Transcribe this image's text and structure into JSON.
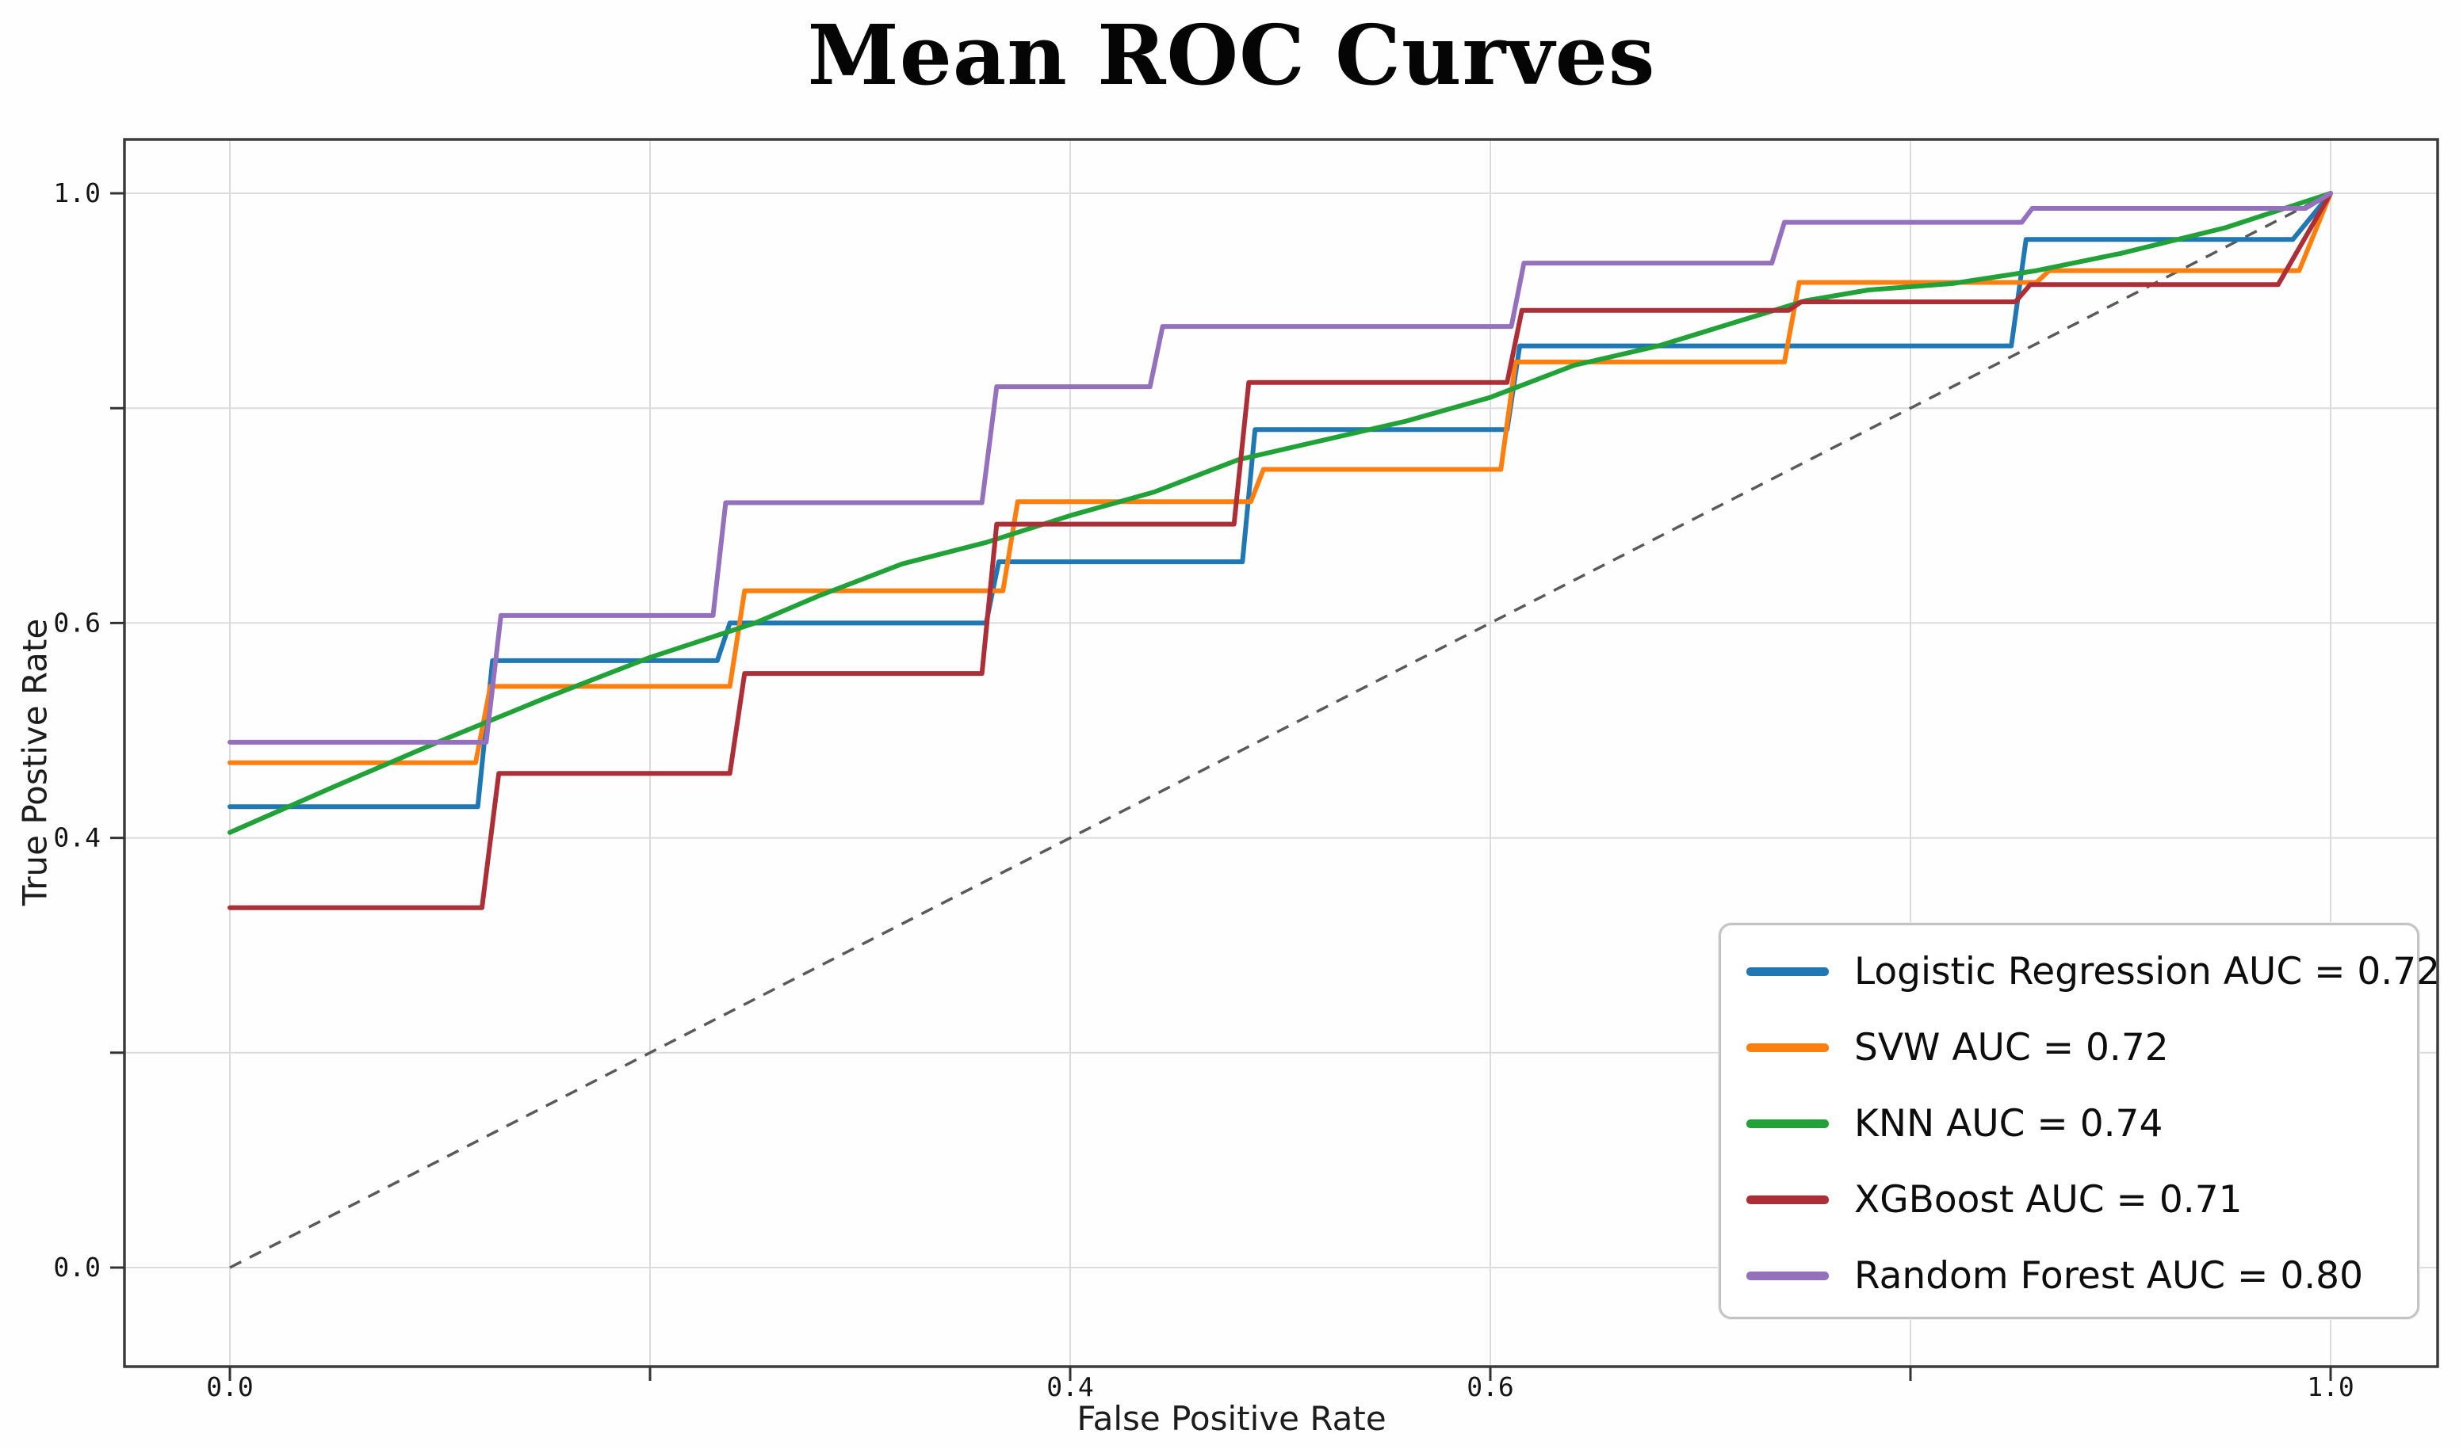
{
  "chart_data": {
    "type": "line",
    "title": "Mean ROC Curves",
    "xlabel": "False Positive Rate",
    "ylabel": "True Postive Rate",
    "xlim": [
      0.0,
      1.0
    ],
    "ylim": [
      0.0,
      1.0
    ],
    "grid": true,
    "legend_position": "lower right",
    "x_ticks": [
      {
        "value": 0.0,
        "label": "0.0"
      },
      {
        "value": 0.2,
        "label": ""
      },
      {
        "value": 0.4,
        "label": "0.4"
      },
      {
        "value": 0.6,
        "label": "0.6"
      },
      {
        "value": 0.8,
        "label": ""
      },
      {
        "value": 1.0,
        "label": "1.0"
      }
    ],
    "y_ticks": [
      {
        "value": 0.0,
        "label": "0.0"
      },
      {
        "value": 0.2,
        "label": ""
      },
      {
        "value": 0.4,
        "label": "0.4"
      },
      {
        "value": 0.6,
        "label": "0.6"
      },
      {
        "value": 0.8,
        "label": ""
      },
      {
        "value": 1.0,
        "label": "1.0"
      }
    ],
    "reference_line": {
      "name": "chance-diagonal",
      "color": "#5a5a5a",
      "style": "dashed",
      "width": 3.5,
      "points": [
        [
          0.0,
          0.0
        ],
        [
          1.0,
          1.0
        ]
      ]
    },
    "series": [
      {
        "name": "Logistic Regression",
        "auc": "0.72",
        "legend_label": "Logistic Regression AUC = 0.72",
        "color": "#1f77b4",
        "style": "solid",
        "points": [
          [
            0,
            0.429
          ],
          [
            0.118,
            0.429
          ],
          [
            0.125,
            0.565
          ],
          [
            0.232,
            0.565
          ],
          [
            0.238,
            0.6
          ],
          [
            0.36,
            0.6
          ],
          [
            0.366,
            0.657
          ],
          [
            0.482,
            0.657
          ],
          [
            0.488,
            0.78
          ],
          [
            0.608,
            0.78
          ],
          [
            0.614,
            0.858
          ],
          [
            0.848,
            0.858
          ],
          [
            0.855,
            0.957
          ],
          [
            0.982,
            0.957
          ],
          [
            1.0,
            1.0
          ]
        ]
      },
      {
        "name": "SVW",
        "auc": "0.72",
        "legend_label": "SVW AUC = 0.72",
        "color": "#ff7f0e",
        "style": "solid",
        "points": [
          [
            0,
            0.47
          ],
          [
            0.117,
            0.47
          ],
          [
            0.124,
            0.541
          ],
          [
            0.238,
            0.541
          ],
          [
            0.245,
            0.63
          ],
          [
            0.368,
            0.63
          ],
          [
            0.375,
            0.713
          ],
          [
            0.486,
            0.713
          ],
          [
            0.492,
            0.743
          ],
          [
            0.605,
            0.743
          ],
          [
            0.612,
            0.843
          ],
          [
            0.74,
            0.843
          ],
          [
            0.747,
            0.917
          ],
          [
            0.86,
            0.917
          ],
          [
            0.866,
            0.928
          ],
          [
            0.985,
            0.928
          ],
          [
            1.0,
            1.0
          ]
        ]
      },
      {
        "name": "KNN",
        "auc": "0.74",
        "legend_label": "KNN AUC = 0.74",
        "color": "#21a137",
        "style": "solid",
        "points": [
          [
            0,
            0.405
          ],
          [
            0.05,
            0.448
          ],
          [
            0.1,
            0.49
          ],
          [
            0.15,
            0.53
          ],
          [
            0.2,
            0.568
          ],
          [
            0.25,
            0.6
          ],
          [
            0.28,
            0.625
          ],
          [
            0.32,
            0.655
          ],
          [
            0.36,
            0.675
          ],
          [
            0.4,
            0.7
          ],
          [
            0.44,
            0.722
          ],
          [
            0.48,
            0.752
          ],
          [
            0.52,
            0.77
          ],
          [
            0.56,
            0.788
          ],
          [
            0.6,
            0.81
          ],
          [
            0.64,
            0.84
          ],
          [
            0.68,
            0.858
          ],
          [
            0.72,
            0.882
          ],
          [
            0.75,
            0.9
          ],
          [
            0.78,
            0.91
          ],
          [
            0.82,
            0.916
          ],
          [
            0.86,
            0.928
          ],
          [
            0.9,
            0.944
          ],
          [
            0.95,
            0.968
          ],
          [
            1.0,
            1.0
          ]
        ]
      },
      {
        "name": "XGBoost",
        "auc": "0.71",
        "legend_label": "XGBoost AUC = 0.71",
        "color": "#ac2f38",
        "style": "solid",
        "points": [
          [
            0,
            0.335
          ],
          [
            0.12,
            0.335
          ],
          [
            0.128,
            0.46
          ],
          [
            0.238,
            0.46
          ],
          [
            0.245,
            0.553
          ],
          [
            0.358,
            0.553
          ],
          [
            0.365,
            0.692
          ],
          [
            0.478,
            0.692
          ],
          [
            0.485,
            0.824
          ],
          [
            0.608,
            0.824
          ],
          [
            0.615,
            0.891
          ],
          [
            0.742,
            0.891
          ],
          [
            0.748,
            0.899
          ],
          [
            0.85,
            0.899
          ],
          [
            0.857,
            0.915
          ],
          [
            0.975,
            0.915
          ],
          [
            1.0,
            1.0
          ]
        ]
      },
      {
        "name": "Random Forest",
        "auc": "0.80",
        "legend_label": "Random Forest AUC = 0.80",
        "color": "#9470bd",
        "style": "solid",
        "points": [
          [
            0,
            0.489
          ],
          [
            0.122,
            0.489
          ],
          [
            0.129,
            0.607
          ],
          [
            0.23,
            0.607
          ],
          [
            0.236,
            0.712
          ],
          [
            0.358,
            0.712
          ],
          [
            0.365,
            0.82
          ],
          [
            0.438,
            0.82
          ],
          [
            0.444,
            0.876
          ],
          [
            0.61,
            0.876
          ],
          [
            0.616,
            0.935
          ],
          [
            0.734,
            0.935
          ],
          [
            0.74,
            0.973
          ],
          [
            0.853,
            0.973
          ],
          [
            0.858,
            0.986
          ],
          [
            0.988,
            0.986
          ],
          [
            1.0,
            1.0
          ]
        ]
      }
    ]
  },
  "legend": {
    "items": [
      {
        "label": "Logistic Regression AUC = 0.72"
      },
      {
        "label": "SVW AUC = 0.72"
      },
      {
        "label": "KNN AUC = 0.74"
      },
      {
        "label": "XGBoost AUC = 0.71"
      },
      {
        "label": "Random Forest AUC = 0.80"
      }
    ]
  }
}
